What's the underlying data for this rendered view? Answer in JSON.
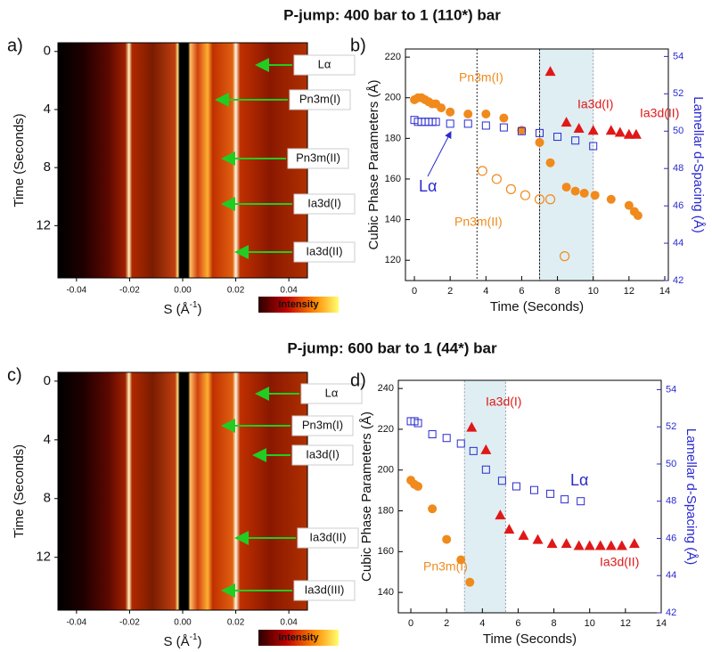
{
  "chart_data": [
    {
      "type": "heatmap",
      "panel": "a)",
      "title": "P-jump: 400 bar to 1 (110*) bar",
      "x_label_parts": [
        "S (Å",
        "-1",
        ")"
      ],
      "y_label": "Time (Seconds)",
      "xlim": [
        -0.047,
        0.047
      ],
      "xticks": [
        -0.04,
        -0.02,
        {
          "value": 0,
          "label": "0.00"
        },
        0.02,
        0.04
      ],
      "ylim": [
        15.6,
        -0.6
      ],
      "yticks": [
        0,
        4,
        8,
        12
      ],
      "colorbar_label": "Intensity",
      "annotations": [
        {
          "text": "Lα",
          "color": "#2a2ad0"
        },
        {
          "text": "Pn3m(I)",
          "color": "#f08a1c"
        },
        {
          "text": "Pn3m(II)",
          "color": "#f08a1c"
        },
        {
          "text": "Ia3d(I)",
          "color": "#e01818"
        },
        {
          "text": "Ia3d(II)",
          "color": "#e01818"
        }
      ]
    },
    {
      "type": "scatter",
      "panel": "b)",
      "x_label": "Time (Seconds)",
      "y_label": "Cubic Phase Parameters (Å)",
      "y2_label": "Lamellar d-Spacing (Å)",
      "xlim": [
        -0.5,
        14.2
      ],
      "xticks": [
        0,
        2,
        4,
        6,
        8,
        10,
        12,
        14
      ],
      "ylim": [
        110,
        224
      ],
      "yticks": [
        120,
        140,
        160,
        180,
        200,
        220
      ],
      "y2lim": [
        42,
        54.4
      ],
      "y2ticks": [
        42,
        44,
        46,
        48,
        50,
        52,
        54
      ],
      "shaded": [
        7,
        10
      ],
      "dashed_lines": [
        3.5,
        7
      ],
      "series": [
        {
          "name": "Pn3m(I)",
          "color": "#f08a1c",
          "marker": "circle",
          "x": [
            0,
            0.2,
            0.4,
            0.6,
            0.8,
            1.0,
            1.2,
            1.5,
            2,
            3,
            4,
            5,
            6,
            7,
            7.6,
            8.5,
            9,
            9.5,
            10.1,
            11,
            12,
            12.3,
            12.5
          ],
          "values": [
            199,
            200,
            200,
            199,
            198,
            197,
            197,
            195,
            193,
            192,
            192,
            190,
            184,
            178,
            168,
            156,
            154,
            153,
            152,
            150,
            147,
            144,
            142
          ]
        },
        {
          "name": "Pn3m(II)",
          "color": "#f08a1c",
          "marker": "open-circle",
          "x": [
            3.8,
            4.6,
            5.4,
            6.2,
            7.0,
            7.6,
            8.4
          ],
          "values": [
            164,
            160,
            155,
            152,
            150,
            150,
            122
          ]
        },
        {
          "name": "Ia3d(I)",
          "color": "#e01818",
          "marker": "triangle",
          "x": [
            7.6,
            8.5,
            9.2,
            10
          ],
          "values": [
            213,
            188,
            185,
            184
          ]
        },
        {
          "name": "Ia3d(II)",
          "color": "#e01818",
          "marker": "triangle",
          "x": [
            11,
            11.5,
            12,
            12.4
          ],
          "values": [
            184,
            183,
            182,
            182
          ]
        },
        {
          "name": "Lα",
          "color": "#2a2ad0",
          "marker": "open-square",
          "axis": "y2",
          "x": [
            0,
            0.2,
            0.4,
            0.6,
            0.8,
            1.0,
            1.2,
            2,
            3,
            4,
            5,
            6,
            7,
            8,
            9,
            10
          ],
          "values": [
            50.6,
            50.5,
            50.5,
            50.5,
            50.5,
            50.5,
            50.5,
            50.4,
            50.4,
            50.3,
            50.2,
            50.0,
            49.9,
            49.7,
            49.5,
            49.2
          ]
        }
      ]
    },
    {
      "type": "heatmap",
      "panel": "c)",
      "title": "P-jump: 600 bar to 1 (44*) bar",
      "x_label_parts": [
        "S (Å",
        "-1",
        ")"
      ],
      "y_label": "Time (Seconds)",
      "xlim": [
        -0.047,
        0.047
      ],
      "xticks": [
        -0.04,
        -0.02,
        {
          "value": 0,
          "label": "0.00"
        },
        0.02,
        0.04
      ],
      "ylim": [
        15.6,
        -0.6
      ],
      "yticks": [
        0,
        4,
        8,
        12
      ],
      "colorbar_label": "Intensity",
      "annotations": [
        {
          "text": "Lα",
          "color": "#2a2ad0"
        },
        {
          "text": "Pn3m(I)",
          "color": "#f08a1c"
        },
        {
          "text": "Ia3d(I)",
          "color": "#e01818"
        },
        {
          "text": "Ia3d(II)",
          "color": "#e01818"
        },
        {
          "text": "Ia3d(III)",
          "color": "#e01818"
        }
      ]
    },
    {
      "type": "scatter",
      "panel": "d)",
      "x_label": "Time (Seconds)",
      "y_label": "Cubic Phase Parameters (Å)",
      "y2_label": "Lamellar d-Spacing (Å)",
      "xlim": [
        -0.7,
        14
      ],
      "xticks": [
        0,
        2,
        4,
        6,
        8,
        10,
        12,
        14
      ],
      "ylim": [
        130,
        244
      ],
      "yticks": [
        140,
        160,
        180,
        200,
        220,
        240
      ],
      "y2lim": [
        42,
        54.5
      ],
      "y2ticks": [
        42,
        44,
        46,
        48,
        50,
        52,
        54
      ],
      "shaded": [
        3,
        5.3
      ],
      "series": [
        {
          "name": "Pn3m(I)",
          "color": "#f08a1c",
          "marker": "circle",
          "x": [
            0,
            0.2,
            0.4,
            1.2,
            2,
            2.8,
            3.3
          ],
          "values": [
            195,
            193,
            192,
            181,
            166,
            156,
            145
          ]
        },
        {
          "name": "Ia3d(I)",
          "color": "#e01818",
          "marker": "triangle",
          "x": [
            3.4,
            4.2,
            5
          ],
          "values": [
            221,
            210,
            178
          ]
        },
        {
          "name": "Ia3d(II)",
          "color": "#e01818",
          "marker": "triangle",
          "x": [
            5.5,
            6.3,
            7.1,
            7.9,
            8.7,
            9.4,
            10,
            10.6,
            11.2,
            11.8,
            12.5
          ],
          "values": [
            171,
            168,
            166,
            164,
            164,
            163,
            163,
            163,
            163,
            163,
            164
          ]
        },
        {
          "name": "Lα",
          "color": "#2a2ad0",
          "marker": "open-square",
          "axis": "y2",
          "x": [
            0,
            0.2,
            0.4,
            1.2,
            2,
            2.8,
            3.5,
            4.2,
            5.1,
            5.9,
            6.9,
            7.8,
            8.6,
            9.5
          ],
          "values": [
            52.3,
            52.3,
            52.2,
            51.6,
            51.4,
            51.1,
            50.7,
            49.7,
            49.1,
            48.8,
            48.6,
            48.4,
            48.1,
            48.0
          ]
        }
      ]
    }
  ]
}
